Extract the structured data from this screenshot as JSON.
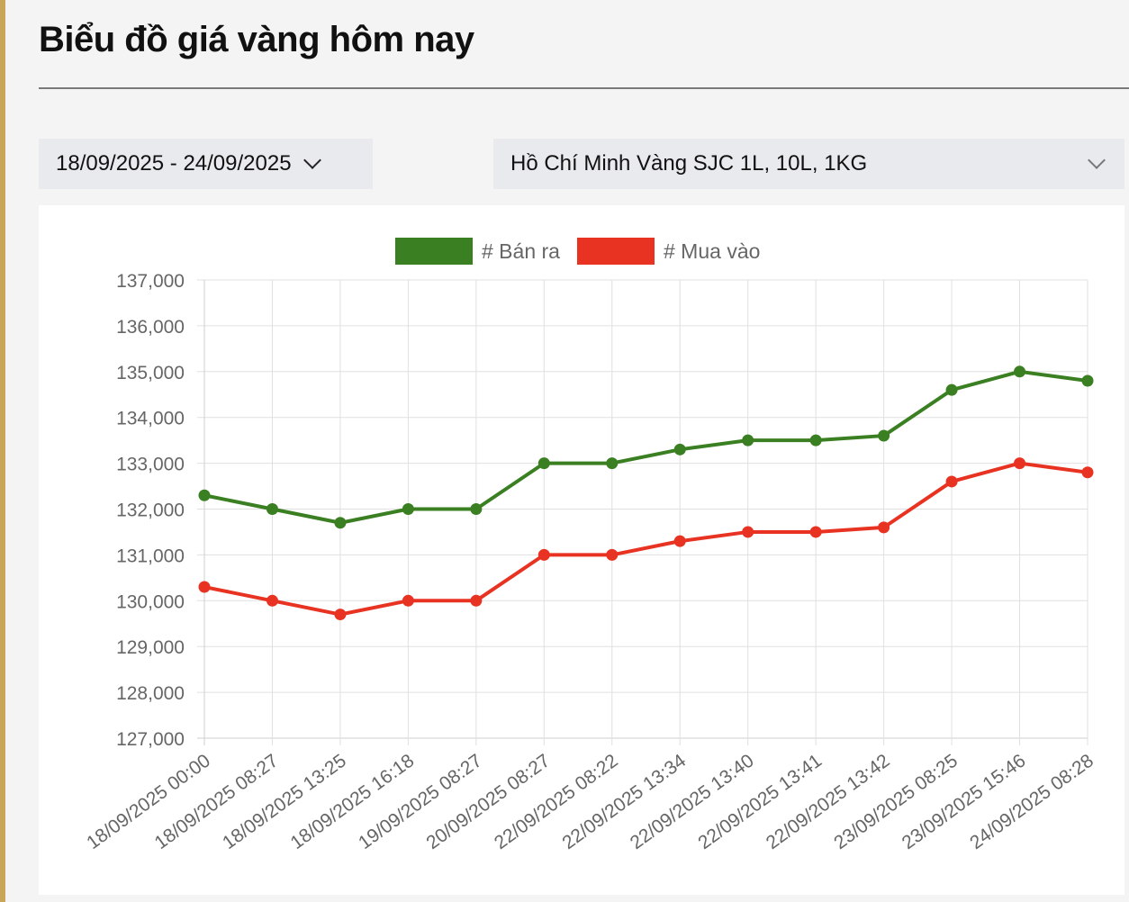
{
  "page": {
    "title": "Biểu đồ giá vàng hôm nay"
  },
  "filters": {
    "date_range": "18/09/2025 - 24/09/2025",
    "product": "Hồ Chí Minh Vàng SJC 1L, 10L, 1KG"
  },
  "colors": {
    "accent_bar": "#c9a55a",
    "sell": "#3a7f21",
    "buy": "#e83323",
    "grid": "#e0e0e0",
    "axis_text": "#666666"
  },
  "chart_data": {
    "type": "line",
    "title": "",
    "xlabel": "",
    "ylabel": "",
    "ylim": [
      127000,
      137000
    ],
    "y_ticks": [
      "137,000",
      "136,000",
      "135,000",
      "134,000",
      "133,000",
      "132,000",
      "131,000",
      "130,000",
      "129,000",
      "128,000",
      "127,000"
    ],
    "grid": true,
    "legend_position": "top",
    "categories": [
      "18/09/2025 00:00",
      "18/09/2025 08:27",
      "18/09/2025 13:25",
      "18/09/2025 16:18",
      "19/09/2025 08:27",
      "20/09/2025 08:27",
      "22/09/2025 08:22",
      "22/09/2025 13:34",
      "22/09/2025 13:40",
      "22/09/2025 13:41",
      "22/09/2025 13:42",
      "23/09/2025 08:25",
      "23/09/2025 15:46",
      "24/09/2025 08:28"
    ],
    "series": [
      {
        "name": "# Bán ra",
        "color": "#3a7f21",
        "values": [
          132300,
          132000,
          131700,
          132000,
          132000,
          133000,
          133000,
          133300,
          133500,
          133500,
          133600,
          134600,
          135000,
          134800
        ]
      },
      {
        "name": "# Mua vào",
        "color": "#e83323",
        "values": [
          130300,
          130000,
          129700,
          130000,
          130000,
          131000,
          131000,
          131300,
          131500,
          131500,
          131600,
          132600,
          133000,
          132800
        ]
      }
    ]
  }
}
